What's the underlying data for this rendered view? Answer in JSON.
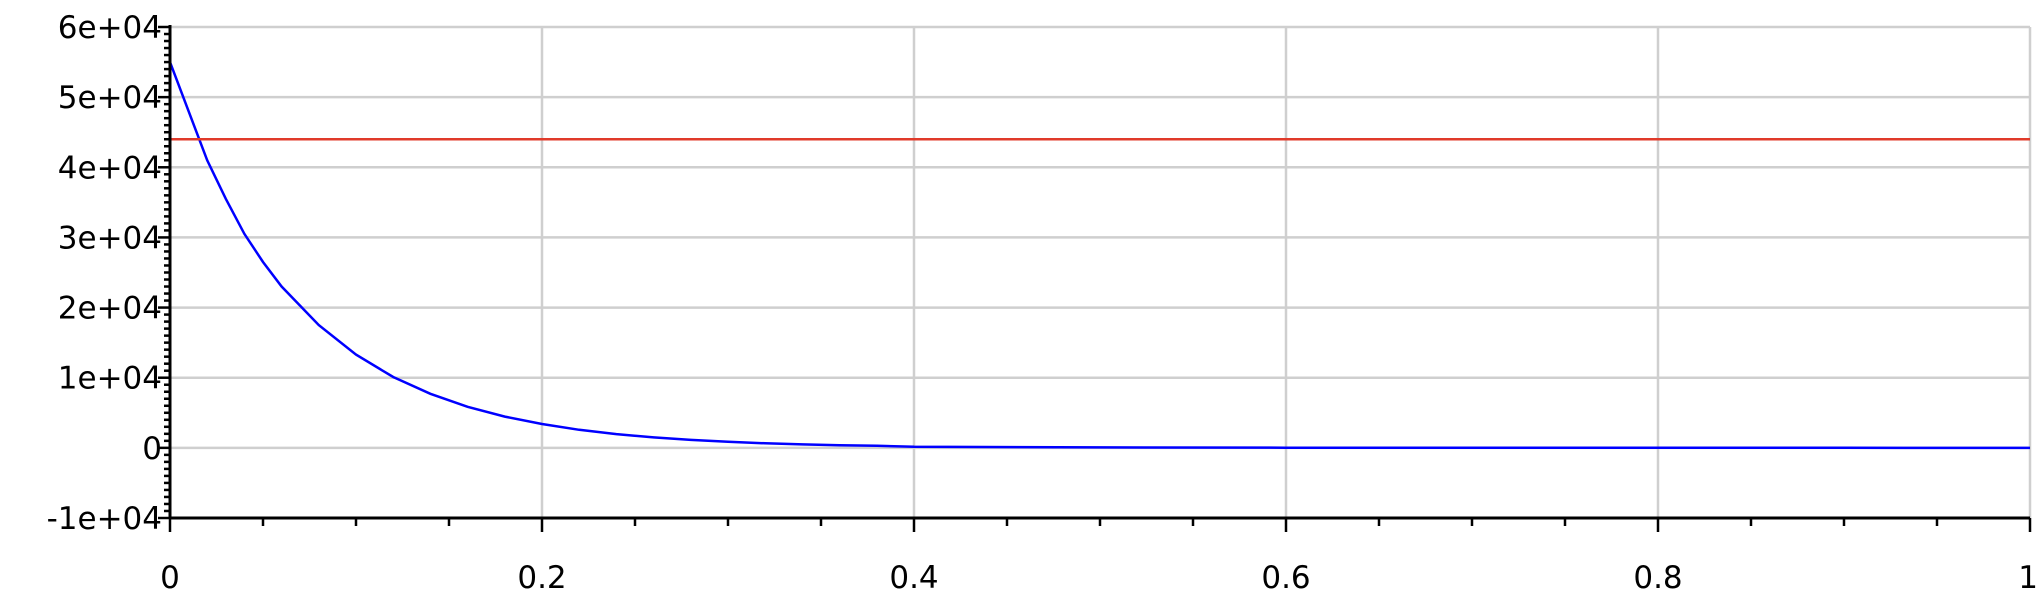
{
  "chart_data": {
    "type": "line",
    "title": "",
    "xlabel": "",
    "ylabel": "",
    "xlim": [
      0,
      1
    ],
    "ylim": [
      -10000,
      60000
    ],
    "grid": true,
    "x_ticks": [
      0,
      0.2,
      0.4,
      0.6,
      0.8,
      1
    ],
    "x_tick_labels": [
      "0",
      "0.2",
      "0.4",
      "0.6",
      "0.8",
      "1"
    ],
    "y_ticks": [
      60000,
      50000,
      40000,
      30000,
      20000,
      10000,
      0,
      -10000
    ],
    "y_tick_labels": [
      "6e+04",
      "5e+04",
      "4e+04",
      "3e+04",
      "2e+04",
      "1e+04",
      "0",
      "-1e+04"
    ],
    "series": [
      {
        "color": "#0000ff",
        "x": [
          0,
          0.01,
          0.02,
          0.03,
          0.04,
          0.05,
          0.06,
          0.08,
          0.1,
          0.12,
          0.14,
          0.16,
          0.18,
          0.2,
          0.22,
          0.24,
          0.26,
          0.28,
          0.3,
          0.32,
          0.34,
          0.36,
          0.38,
          0.4,
          0.5,
          0.6,
          0.7,
          0.8,
          0.9,
          1.0
        ],
        "y": [
          55000,
          48000,
          41000,
          35500,
          30500,
          26500,
          23000,
          17500,
          13300,
          10100,
          7700,
          5850,
          4450,
          3400,
          2580,
          1960,
          1490,
          1130,
          860,
          650,
          500,
          380,
          290,
          150,
          60,
          25,
          10,
          5,
          2,
          0
        ]
      },
      {
        "color": "#e03a2a",
        "x": [
          0,
          1
        ],
        "y": [
          44000,
          44000
        ]
      }
    ]
  }
}
